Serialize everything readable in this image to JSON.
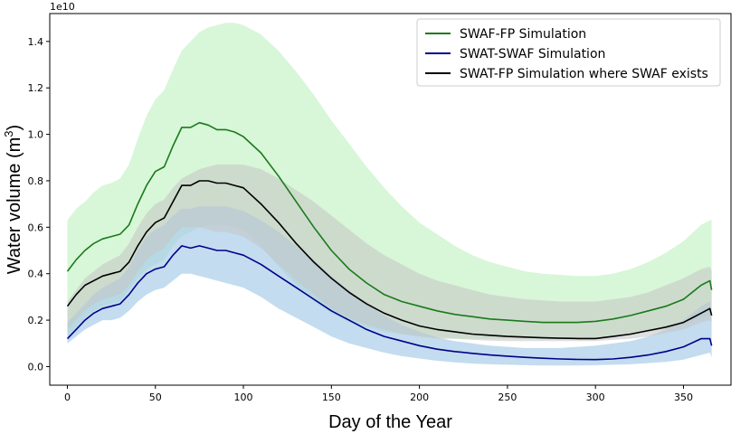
{
  "chart_data": {
    "type": "line",
    "title": "",
    "xlabel": "Day of the Year",
    "ylabel_prefix": "Water volume (m",
    "ylabel_sup": "3",
    "ylabel_suffix": ")",
    "offset_text": "1e10",
    "xlim": [
      -10,
      377
    ],
    "ylim": [
      -0.08,
      1.52
    ],
    "xticks": [
      0,
      50,
      100,
      150,
      200,
      250,
      300,
      350
    ],
    "yticks": [
      0.0,
      0.2,
      0.4,
      0.6,
      0.8,
      1.0,
      1.2,
      1.4
    ],
    "ytick_labels": [
      "0.0",
      "0.2",
      "0.4",
      "0.6",
      "0.8",
      "1.0",
      "1.2",
      "1.4"
    ],
    "x": [
      0,
      5,
      10,
      15,
      20,
      25,
      30,
      35,
      40,
      45,
      50,
      55,
      60,
      65,
      70,
      75,
      80,
      85,
      90,
      95,
      100,
      110,
      120,
      130,
      140,
      150,
      160,
      170,
      180,
      190,
      200,
      210,
      220,
      230,
      240,
      250,
      260,
      270,
      280,
      290,
      300,
      310,
      320,
      330,
      340,
      350,
      360,
      365,
      366
    ],
    "legend_position": "upper right",
    "series": [
      {
        "name": "SWAF-FP Simulation",
        "color": "#1a7a1a",
        "band_color": "#d4f5d4",
        "values": [
          0.41,
          0.46,
          0.5,
          0.53,
          0.55,
          0.56,
          0.57,
          0.61,
          0.7,
          0.78,
          0.84,
          0.86,
          0.95,
          1.03,
          1.03,
          1.05,
          1.04,
          1.02,
          1.02,
          1.01,
          0.99,
          0.92,
          0.82,
          0.71,
          0.6,
          0.5,
          0.42,
          0.36,
          0.31,
          0.28,
          0.26,
          0.24,
          0.225,
          0.215,
          0.205,
          0.2,
          0.195,
          0.19,
          0.19,
          0.19,
          0.195,
          0.205,
          0.22,
          0.24,
          0.26,
          0.29,
          0.35,
          0.37,
          0.33
        ],
        "upper": [
          0.63,
          0.68,
          0.71,
          0.75,
          0.78,
          0.79,
          0.81,
          0.87,
          0.98,
          1.08,
          1.15,
          1.19,
          1.28,
          1.36,
          1.4,
          1.44,
          1.46,
          1.47,
          1.48,
          1.48,
          1.47,
          1.43,
          1.36,
          1.27,
          1.17,
          1.06,
          0.96,
          0.86,
          0.77,
          0.69,
          0.62,
          0.57,
          0.52,
          0.48,
          0.45,
          0.43,
          0.41,
          0.4,
          0.395,
          0.39,
          0.39,
          0.4,
          0.42,
          0.45,
          0.49,
          0.54,
          0.61,
          0.63,
          0.63
        ],
        "lower": [
          0.13,
          0.17,
          0.21,
          0.24,
          0.26,
          0.27,
          0.28,
          0.33,
          0.38,
          0.42,
          0.44,
          0.46,
          0.52,
          0.56,
          0.58,
          0.6,
          0.61,
          0.61,
          0.61,
          0.6,
          0.59,
          0.52,
          0.43,
          0.35,
          0.28,
          0.23,
          0.19,
          0.17,
          0.15,
          0.14,
          0.13,
          0.125,
          0.12,
          0.12,
          0.12,
          0.12,
          0.12,
          0.12,
          0.12,
          0.12,
          0.12,
          0.13,
          0.14,
          0.15,
          0.16,
          0.18,
          0.21,
          0.22,
          0.21
        ]
      },
      {
        "name": "SWAT-SWAF Simulation",
        "color": "#00008b",
        "band_color": "#a9cde8",
        "values": [
          0.12,
          0.16,
          0.2,
          0.23,
          0.25,
          0.26,
          0.27,
          0.31,
          0.36,
          0.4,
          0.42,
          0.43,
          0.48,
          0.52,
          0.51,
          0.52,
          0.51,
          0.5,
          0.5,
          0.49,
          0.48,
          0.44,
          0.39,
          0.34,
          0.29,
          0.24,
          0.2,
          0.16,
          0.13,
          0.11,
          0.09,
          0.075,
          0.065,
          0.057,
          0.05,
          0.045,
          0.04,
          0.036,
          0.033,
          0.031,
          0.03,
          0.033,
          0.04,
          0.05,
          0.065,
          0.085,
          0.12,
          0.12,
          0.09
        ],
        "upper": [
          0.19,
          0.23,
          0.27,
          0.31,
          0.34,
          0.36,
          0.38,
          0.43,
          0.5,
          0.56,
          0.59,
          0.61,
          0.65,
          0.68,
          0.68,
          0.69,
          0.69,
          0.69,
          0.69,
          0.68,
          0.67,
          0.63,
          0.58,
          0.52,
          0.46,
          0.39,
          0.33,
          0.27,
          0.22,
          0.18,
          0.15,
          0.125,
          0.11,
          0.1,
          0.09,
          0.085,
          0.08,
          0.08,
          0.08,
          0.085,
          0.09,
          0.1,
          0.11,
          0.13,
          0.16,
          0.2,
          0.26,
          0.28,
          0.2
        ],
        "lower": [
          0.1,
          0.13,
          0.16,
          0.18,
          0.2,
          0.2,
          0.21,
          0.24,
          0.28,
          0.31,
          0.33,
          0.34,
          0.37,
          0.4,
          0.4,
          0.39,
          0.38,
          0.37,
          0.36,
          0.35,
          0.34,
          0.3,
          0.25,
          0.21,
          0.17,
          0.13,
          0.1,
          0.08,
          0.06,
          0.045,
          0.035,
          0.025,
          0.018,
          0.013,
          0.01,
          0.008,
          0.006,
          0.005,
          0.005,
          0.005,
          0.006,
          0.008,
          0.01,
          0.015,
          0.02,
          0.03,
          0.05,
          0.06,
          0.04
        ]
      },
      {
        "name": "SWAT-FP Simulation where SWAF exists",
        "color": "#000000",
        "band_color": "#c4c4c4",
        "values": [
          0.26,
          0.31,
          0.35,
          0.37,
          0.39,
          0.4,
          0.41,
          0.45,
          0.52,
          0.58,
          0.62,
          0.64,
          0.71,
          0.78,
          0.78,
          0.8,
          0.8,
          0.79,
          0.79,
          0.78,
          0.77,
          0.7,
          0.62,
          0.53,
          0.45,
          0.38,
          0.32,
          0.27,
          0.23,
          0.2,
          0.175,
          0.16,
          0.15,
          0.14,
          0.135,
          0.13,
          0.127,
          0.124,
          0.122,
          0.121,
          0.121,
          0.13,
          0.14,
          0.155,
          0.17,
          0.19,
          0.23,
          0.25,
          0.22
        ],
        "upper": [
          0.28,
          0.33,
          0.38,
          0.41,
          0.44,
          0.46,
          0.48,
          0.53,
          0.6,
          0.66,
          0.7,
          0.72,
          0.77,
          0.81,
          0.83,
          0.85,
          0.86,
          0.87,
          0.87,
          0.87,
          0.87,
          0.85,
          0.81,
          0.76,
          0.71,
          0.65,
          0.59,
          0.53,
          0.48,
          0.44,
          0.4,
          0.37,
          0.35,
          0.33,
          0.31,
          0.3,
          0.29,
          0.285,
          0.28,
          0.28,
          0.28,
          0.29,
          0.3,
          0.32,
          0.35,
          0.38,
          0.42,
          0.43,
          0.41
        ],
        "lower": [
          0.16,
          0.2,
          0.24,
          0.27,
          0.29,
          0.3,
          0.31,
          0.35,
          0.41,
          0.46,
          0.49,
          0.51,
          0.56,
          0.6,
          0.6,
          0.6,
          0.59,
          0.58,
          0.58,
          0.57,
          0.56,
          0.51,
          0.44,
          0.37,
          0.31,
          0.25,
          0.21,
          0.18,
          0.16,
          0.14,
          0.13,
          0.12,
          0.12,
          0.115,
          0.112,
          0.11,
          0.11,
          0.11,
          0.11,
          0.11,
          0.11,
          0.115,
          0.12,
          0.13,
          0.145,
          0.16,
          0.19,
          0.2,
          0.19
        ]
      }
    ]
  }
}
